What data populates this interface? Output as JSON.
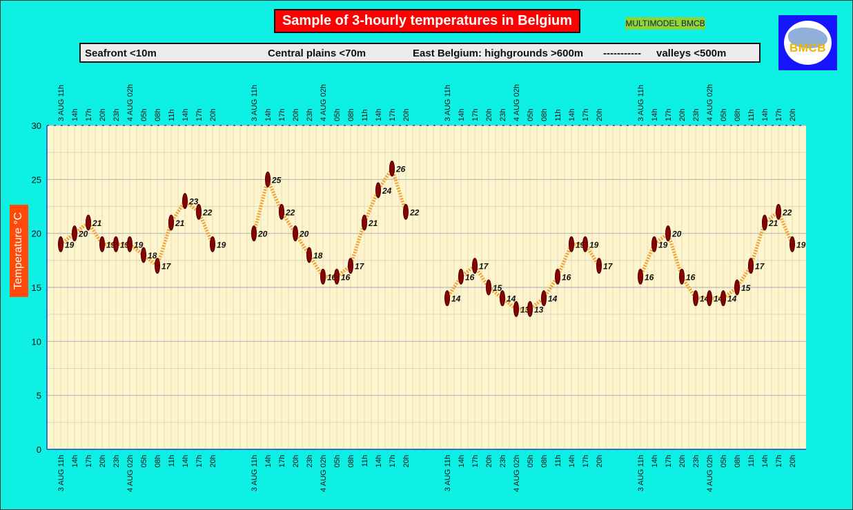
{
  "header": {
    "title": "Sample of 3-hourly temperatures in Belgium",
    "badge": "MULTIMODEL BMCB",
    "logo_text": "BMCB"
  },
  "regions": [
    "Seafront <10m",
    "Central plains <70m",
    "East Belgium: highgrounds >600m",
    "-----------",
    "valleys <500m"
  ],
  "colors": {
    "background": "#0ff0e4",
    "plot_area": "#fff5cc",
    "title_bg": "#ff0000",
    "axis_label_bg": "#ff4a0a",
    "line": "#f0a030",
    "marker": "#8b0000"
  },
  "chart_data": {
    "type": "line",
    "ylabel": "Temperature  °C",
    "ylim": [
      0,
      30
    ],
    "yticks": [
      0,
      5,
      10,
      15,
      20,
      25,
      30
    ],
    "grid": true,
    "x_tick_labels": [
      "3 AUG  11h",
      "14h",
      "17h",
      "20h",
      "23h",
      "4 AUG 02h",
      "05h",
      "08h",
      "11h",
      "14h",
      "17h",
      "20h"
    ],
    "series": [
      {
        "name": "Seafront <10m",
        "values": [
          19,
          20,
          21,
          19,
          19,
          19,
          18,
          17,
          21,
          23,
          22,
          19
        ]
      },
      {
        "name": "Central plains <70m",
        "values": [
          20,
          25,
          22,
          20,
          18,
          16,
          16,
          17,
          21,
          24,
          26,
          22
        ]
      },
      {
        "name": "East Belgium: highgrounds >600m",
        "values": [
          14,
          16,
          17,
          15,
          14,
          13,
          13,
          14,
          16,
          19,
          19,
          17
        ]
      },
      {
        "name": "valleys <500m",
        "values": [
          16,
          19,
          20,
          16,
          14,
          14,
          14,
          15,
          17,
          21,
          22,
          19
        ]
      }
    ]
  }
}
